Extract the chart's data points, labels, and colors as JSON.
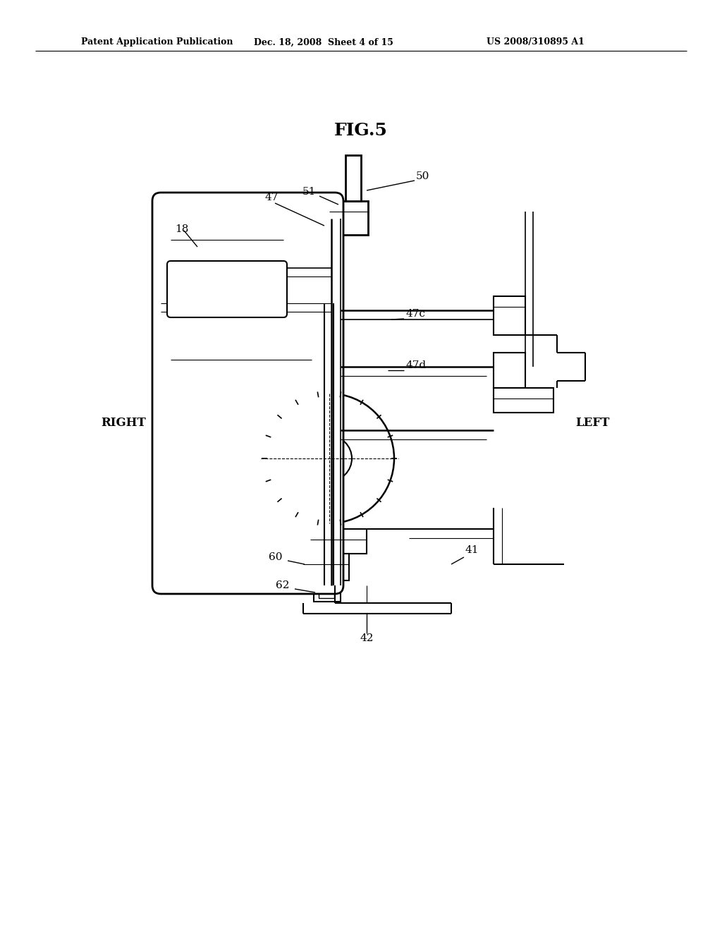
{
  "bg_color": "#ffffff",
  "line_color": "#000000",
  "fig_title": "FIG.5",
  "header_left": "Patent Application Publication",
  "header_mid": "Dec. 18, 2008  Sheet 4 of 15",
  "header_right": "US 2008/310895 A1",
  "figsize": [
    10.24,
    13.2
  ],
  "dpi": 100
}
